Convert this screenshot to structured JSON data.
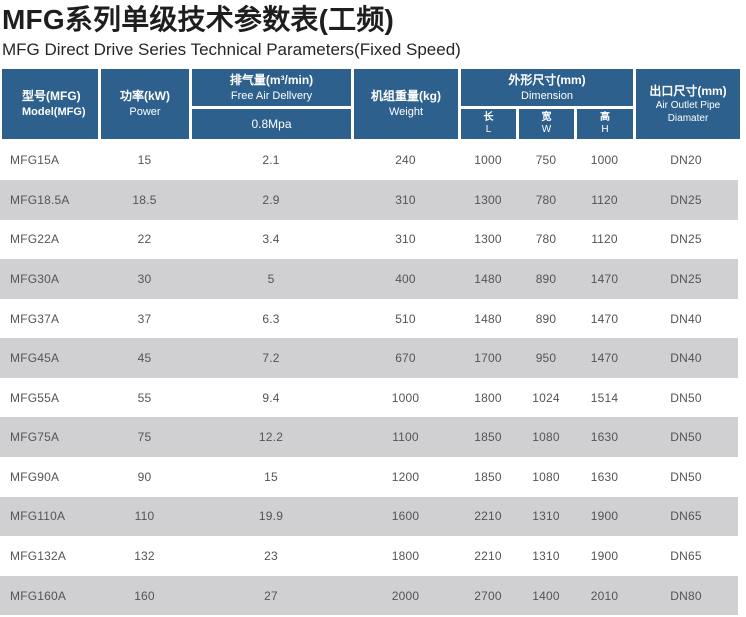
{
  "page": {
    "title": "MFG系列单级技术参数表(工频)",
    "subtitle": "MFG Direct Drive Series Technical Parameters(Fixed Speed)"
  },
  "colors": {
    "header_blue": "#2d608d",
    "row_alt_gray": "#d0d0d2",
    "row_white": "#ffffff",
    "data_text": "#545456",
    "header_text": "#ffffff",
    "title_text": "#1e1e1e"
  },
  "table": {
    "header": {
      "model_cn": "型号(MFG)",
      "model_en": "Model(MFG)",
      "power_cn": "功率(kW)",
      "power_en": "Power",
      "fad_cn": "排气量(m³/min)",
      "fad_en": "Free Air Dellvery",
      "fad_pressure": "0.8Mpa",
      "weight_cn": "机组重量(kg)",
      "weight_en": "Weight",
      "dim_cn": "外形尺寸(mm)",
      "dim_en": "Dimension",
      "dim_l_cn": "长",
      "dim_l_en": "L",
      "dim_w_cn": "宽",
      "dim_w_en": "W",
      "dim_h_cn": "高",
      "dim_h_en": "H",
      "outlet_cn": "出口尺寸(mm)",
      "outlet_en": "Air Outlet Pipe Diamater"
    },
    "rows": [
      {
        "model": "MFG15A",
        "power": "15",
        "fad": "2.1",
        "weight": "240",
        "length": "1000",
        "width": "750",
        "height": "1000",
        "outlet": "DN20"
      },
      {
        "model": "MFG18.5A",
        "power": "18.5",
        "fad": "2.9",
        "weight": "310",
        "length": "1300",
        "width": "780",
        "height": "1120",
        "outlet": "DN25"
      },
      {
        "model": "MFG22A",
        "power": "22",
        "fad": "3.4",
        "weight": "310",
        "length": "1300",
        "width": "780",
        "height": "1120",
        "outlet": "DN25"
      },
      {
        "model": "MFG30A",
        "power": "30",
        "fad": "5",
        "weight": "400",
        "length": "1480",
        "width": "890",
        "height": "1470",
        "outlet": "DN25"
      },
      {
        "model": "MFG37A",
        "power": "37",
        "fad": "6.3",
        "weight": "510",
        "length": "1480",
        "width": "890",
        "height": "1470",
        "outlet": "DN40"
      },
      {
        "model": "MFG45A",
        "power": "45",
        "fad": "7.2",
        "weight": "670",
        "length": "1700",
        "width": "950",
        "height": "1470",
        "outlet": "DN40"
      },
      {
        "model": "MFG55A",
        "power": "55",
        "fad": "9.4",
        "weight": "1000",
        "length": "1800",
        "width": "1024",
        "height": "1514",
        "outlet": "DN50"
      },
      {
        "model": "MFG75A",
        "power": "75",
        "fad": "12.2",
        "weight": "1100",
        "length": "1850",
        "width": "1080",
        "height": "1630",
        "outlet": "DN50"
      },
      {
        "model": "MFG90A",
        "power": "90",
        "fad": "15",
        "weight": "1200",
        "length": "1850",
        "width": "1080",
        "height": "1630",
        "outlet": "DN50"
      },
      {
        "model": "MFG110A",
        "power": "110",
        "fad": "19.9",
        "weight": "1600",
        "length": "2210",
        "width": "1310",
        "height": "1900",
        "outlet": "DN65"
      },
      {
        "model": "MFG132A",
        "power": "132",
        "fad": "23",
        "weight": "1800",
        "length": "2210",
        "width": "1310",
        "height": "1900",
        "outlet": "DN65"
      },
      {
        "model": "MFG160A",
        "power": "160",
        "fad": "27",
        "weight": "2000",
        "length": "2700",
        "width": "1400",
        "height": "2010",
        "outlet": "DN80"
      }
    ]
  }
}
